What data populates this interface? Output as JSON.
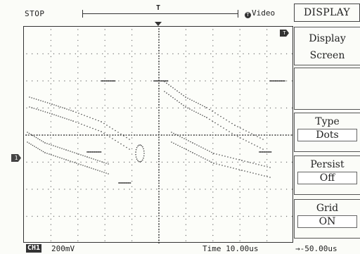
{
  "status": "STOP",
  "trigger": {
    "marker": "T",
    "mode": "Video",
    "mode_icon": "T"
  },
  "channel_marker": "1",
  "menu": {
    "title": "DISPLAY",
    "items": [
      {
        "label": "Display",
        "sub": "Screen"
      },
      {
        "label": "",
        "value": ""
      },
      {
        "label": "Type",
        "value": "Dots"
      },
      {
        "label": "Persist",
        "value": "Off"
      },
      {
        "label": "Grid",
        "value": "ON"
      }
    ]
  },
  "bottom": {
    "ch1_label": "CH1",
    "ch1_scale": "200mV",
    "time_div": "Time 10.00us",
    "trig_offset": "→-50.00us"
  }
}
